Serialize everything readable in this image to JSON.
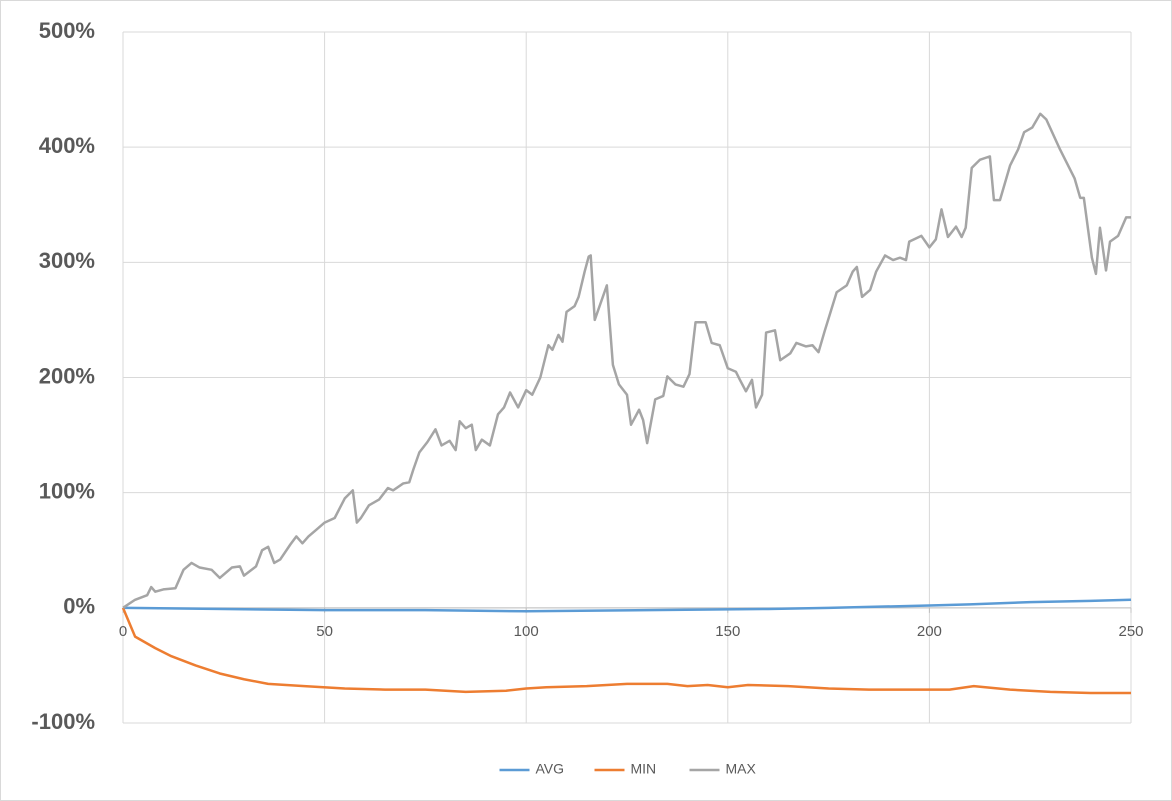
{
  "chart_data": {
    "type": "line",
    "xlim": [
      0,
      250
    ],
    "xticks": [
      0,
      50,
      100,
      150,
      200,
      250
    ],
    "ylim": [
      -100,
      500
    ],
    "yticks": [
      {
        "value": -100,
        "label": "-100%"
      },
      {
        "value": 0,
        "label": "0%"
      },
      {
        "value": 100,
        "label": "100%"
      },
      {
        "value": 200,
        "label": "200%"
      },
      {
        "value": 300,
        "label": "300%"
      },
      {
        "value": 400,
        "label": "400%"
      },
      {
        "value": 500,
        "label": "500%"
      }
    ],
    "grid": true,
    "legend": "bottom",
    "series": [
      {
        "name": "AVG",
        "color": "#5b9bd5",
        "x": [
          0,
          25,
          50,
          75,
          100,
          130,
          160,
          175,
          200,
          210,
          225,
          240,
          250
        ],
        "values": [
          0,
          -1,
          -2,
          -2,
          -3,
          -2,
          -1,
          0,
          2,
          3,
          5,
          6,
          7
        ]
      },
      {
        "name": "MIN",
        "color": "#ed7d31",
        "x": [
          0,
          3,
          8,
          12,
          18,
          24,
          30,
          36,
          45,
          55,
          65,
          75,
          85,
          95,
          100,
          105,
          115,
          125,
          135,
          140,
          145,
          150,
          155,
          165,
          175,
          185,
          195,
          205,
          211,
          220,
          230,
          240,
          250
        ],
        "values": [
          0,
          -25,
          -35,
          -42,
          -50,
          -57,
          -62,
          -66,
          -68,
          -70,
          -71,
          -71,
          -73,
          -72,
          -70,
          -69,
          -68,
          -66,
          -66,
          -68,
          -67,
          -69,
          -67,
          -68,
          -70,
          -71,
          -71,
          -71,
          -68,
          -71,
          -73,
          -74,
          -74
        ]
      },
      {
        "name": "MAX",
        "color": "#a5a5a5",
        "x": [
          0,
          3,
          6,
          7,
          8,
          10,
          13,
          15,
          17,
          19,
          22,
          24,
          27,
          29,
          30,
          33,
          34.5,
          36,
          37.5,
          39,
          41.5,
          43,
          44.5,
          46,
          48,
          50,
          52.5,
          55,
          57,
          58,
          59,
          61,
          63.5,
          65.7,
          67,
          69.5,
          71,
          72,
          73.5,
          75.5,
          77.5,
          79,
          81,
          82.5,
          83.5,
          85,
          86.5,
          87.5,
          89,
          91,
          93,
          94.5,
          96,
          98,
          100,
          101.5,
          103.5,
          105.5,
          106.5,
          108,
          109,
          110,
          112,
          113,
          114.5,
          115.5,
          116,
          117,
          120,
          121.5,
          123,
          125,
          126,
          128,
          129,
          130,
          132,
          134,
          135,
          137,
          139,
          140.5,
          142,
          144.5,
          146,
          148,
          150,
          152,
          153,
          154.5,
          156,
          157,
          158.5,
          159.5,
          161.7,
          163,
          165.5,
          167,
          169.4,
          171,
          172.5,
          174,
          177,
          179.5,
          181,
          182,
          183.3,
          185.3,
          186.8,
          189,
          191,
          192.7,
          194.2,
          195,
          198,
          200,
          201.6,
          203,
          204.6,
          206.6,
          208,
          209,
          210.5,
          212.5,
          215,
          216,
          217.5,
          220,
          222,
          223.5,
          225.5,
          227.5,
          229,
          232.4,
          236,
          237.4,
          238.3,
          240.3,
          241.3,
          242.3,
          243.8,
          244.8,
          246.8,
          248.8,
          250
        ],
        "values": [
          0,
          7,
          11,
          18,
          14,
          16,
          17,
          33,
          39,
          35,
          33,
          26,
          35,
          36,
          28,
          36,
          50,
          53,
          39,
          42,
          55,
          62,
          56,
          62,
          68,
          74,
          78,
          95,
          102,
          74,
          78,
          89,
          94,
          104,
          102,
          108,
          109,
          120,
          135,
          144,
          155,
          141,
          145,
          137,
          162,
          156,
          159,
          137,
          146,
          141,
          168,
          174,
          187,
          174,
          189,
          185,
          200,
          228,
          224,
          237,
          231,
          257,
          262,
          270,
          292,
          305,
          306,
          250,
          280,
          211,
          194,
          185,
          159,
          172,
          163,
          143,
          181,
          184,
          201,
          194,
          192,
          203,
          248,
          248,
          230,
          228,
          208,
          205,
          198,
          188,
          198,
          174,
          185,
          239,
          241,
          215,
          221,
          230,
          227,
          228,
          222,
          240,
          274,
          280,
          292,
          296,
          270,
          276,
          292,
          306,
          302,
          304,
          302,
          318,
          323,
          313,
          320,
          346,
          322,
          331,
          322,
          330,
          382,
          389,
          392,
          354,
          354,
          384,
          398,
          413,
          417,
          429,
          424,
          398,
          373,
          356,
          356,
          304,
          290,
          330,
          293,
          318,
          323,
          339,
          339
        ]
      }
    ]
  }
}
